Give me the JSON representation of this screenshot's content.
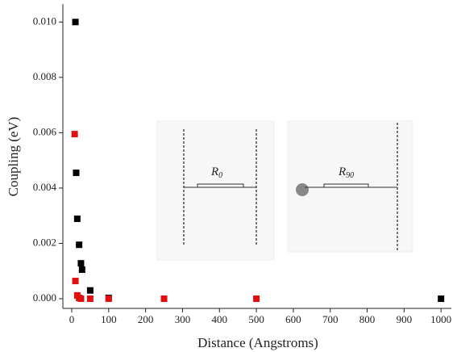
{
  "chart_data": {
    "type": "scatter",
    "xlabel": "Distance (Angstroms)",
    "ylabel": "Coupling (eV)",
    "xlim": [
      -24,
      1028
    ],
    "ylim": [
      -0.00035,
      0.01065
    ],
    "xticks": [
      0,
      100,
      200,
      300,
      400,
      500,
      600,
      700,
      800,
      900,
      1000
    ],
    "yticks": [
      {
        "value": 0,
        "label": "0.000"
      },
      {
        "value": 0.002,
        "label": "0.002"
      },
      {
        "value": 0.004,
        "label": "0.004"
      },
      {
        "value": 0.006,
        "label": "0.006"
      },
      {
        "value": 0.008,
        "label": "0.008"
      },
      {
        "value": 0.01,
        "label": "0.010"
      }
    ],
    "series": [
      {
        "color": "#000000",
        "x": [
          10,
          12,
          15,
          20,
          25,
          28,
          50,
          100,
          1000
        ],
        "values": [
          0.01,
          0.00455,
          0.00289,
          0.00195,
          0.00128,
          0.00105,
          0.0003,
          3e-05,
          0
        ]
      },
      {
        "color": "#e01010",
        "x": [
          8,
          10,
          15,
          20,
          25,
          50,
          100,
          250,
          500
        ],
        "values": [
          0.00595,
          0.00064,
          0.00012,
          3e-05,
          0,
          0,
          0,
          0,
          0
        ]
      }
    ],
    "annotations": [
      {
        "label": "R",
        "subscript": "0"
      },
      {
        "label": "R",
        "subscript": "90"
      }
    ]
  }
}
